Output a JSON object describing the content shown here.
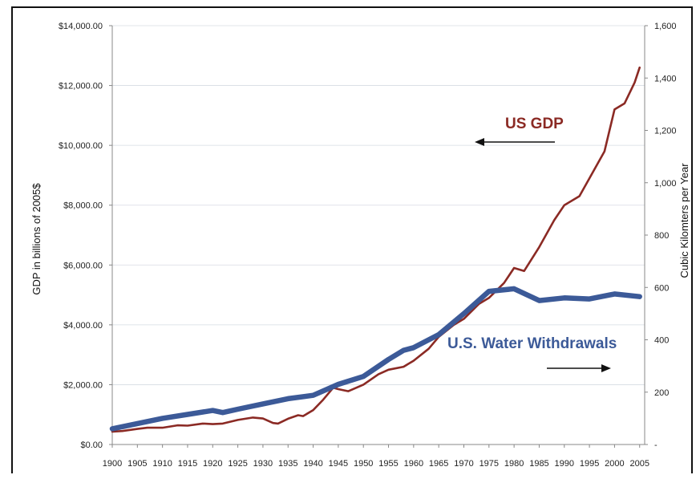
{
  "chart_data": {
    "type": "line",
    "title": "",
    "xlabel": "",
    "ylabel_left": "GDP in billions of 2005$",
    "ylabel_right": "Cubic Kilomters per Year",
    "xlim": [
      1900,
      2006
    ],
    "ylim_left": [
      0,
      14000
    ],
    "ylim_right": [
      0,
      1600
    ],
    "x_ticks": [
      "1900",
      "1905",
      "1910",
      "1915",
      "1920",
      "1925",
      "1930",
      "1935",
      "1940",
      "1945",
      "1950",
      "1955",
      "1960",
      "1965",
      "1970",
      "1975",
      "1980",
      "1985",
      "1990",
      "1995",
      "2000",
      "2005"
    ],
    "y_ticks_left": [
      "$0.00",
      "$2,000.00",
      "$4,000.00",
      "$6,000.00",
      "$8,000.00",
      "$10,000.00",
      "$12,000.00",
      "$14,000.00"
    ],
    "y_ticks_right": [
      "-",
      "200",
      "400",
      "600",
      "800",
      "1,000",
      "1,200",
      "1,400",
      "1,600"
    ],
    "grid": true,
    "annotations": [
      {
        "text": "US GDP",
        "arrow": "left"
      },
      {
        "text": "U.S. Water Withdrawals",
        "arrow": "right"
      }
    ],
    "series": [
      {
        "name": "US GDP",
        "axis": "left",
        "color": "#8b2a24",
        "x": [
          1900,
          1902,
          1905,
          1907,
          1910,
          1913,
          1915,
          1918,
          1920,
          1922,
          1925,
          1928,
          1930,
          1932,
          1933,
          1935,
          1937,
          1938,
          1940,
          1942,
          1944,
          1945,
          1947,
          1950,
          1953,
          1955,
          1958,
          1960,
          1963,
          1965,
          1968,
          1970,
          1973,
          1975,
          1978,
          1980,
          1982,
          1985,
          1988,
          1990,
          1993,
          1995,
          1998,
          2000,
          2002,
          2004,
          2005
        ],
        "values": [
          430,
          450,
          520,
          560,
          560,
          640,
          630,
          700,
          680,
          700,
          820,
          900,
          870,
          720,
          700,
          860,
          980,
          950,
          1150,
          1500,
          1900,
          1850,
          1780,
          2000,
          2350,
          2500,
          2600,
          2800,
          3200,
          3600,
          4000,
          4200,
          4700,
          4900,
          5400,
          5900,
          5800,
          6600,
          7500,
          8000,
          8300,
          8900,
          9800,
          11200,
          11400,
          12100,
          12600
        ]
      },
      {
        "name": "U.S. Water Withdrawals",
        "axis": "right",
        "color": "#3c5a98",
        "x": [
          1900,
          1905,
          1910,
          1915,
          1920,
          1922,
          1925,
          1930,
          1935,
          1940,
          1945,
          1950,
          1955,
          1958,
          1960,
          1965,
          1970,
          1975,
          1980,
          1985,
          1990,
          1995,
          2000,
          2005
        ],
        "values": [
          60,
          80,
          100,
          115,
          130,
          122,
          135,
          155,
          175,
          188,
          230,
          260,
          325,
          360,
          370,
          420,
          500,
          585,
          595,
          550,
          560,
          556,
          575,
          565
        ]
      }
    ]
  }
}
